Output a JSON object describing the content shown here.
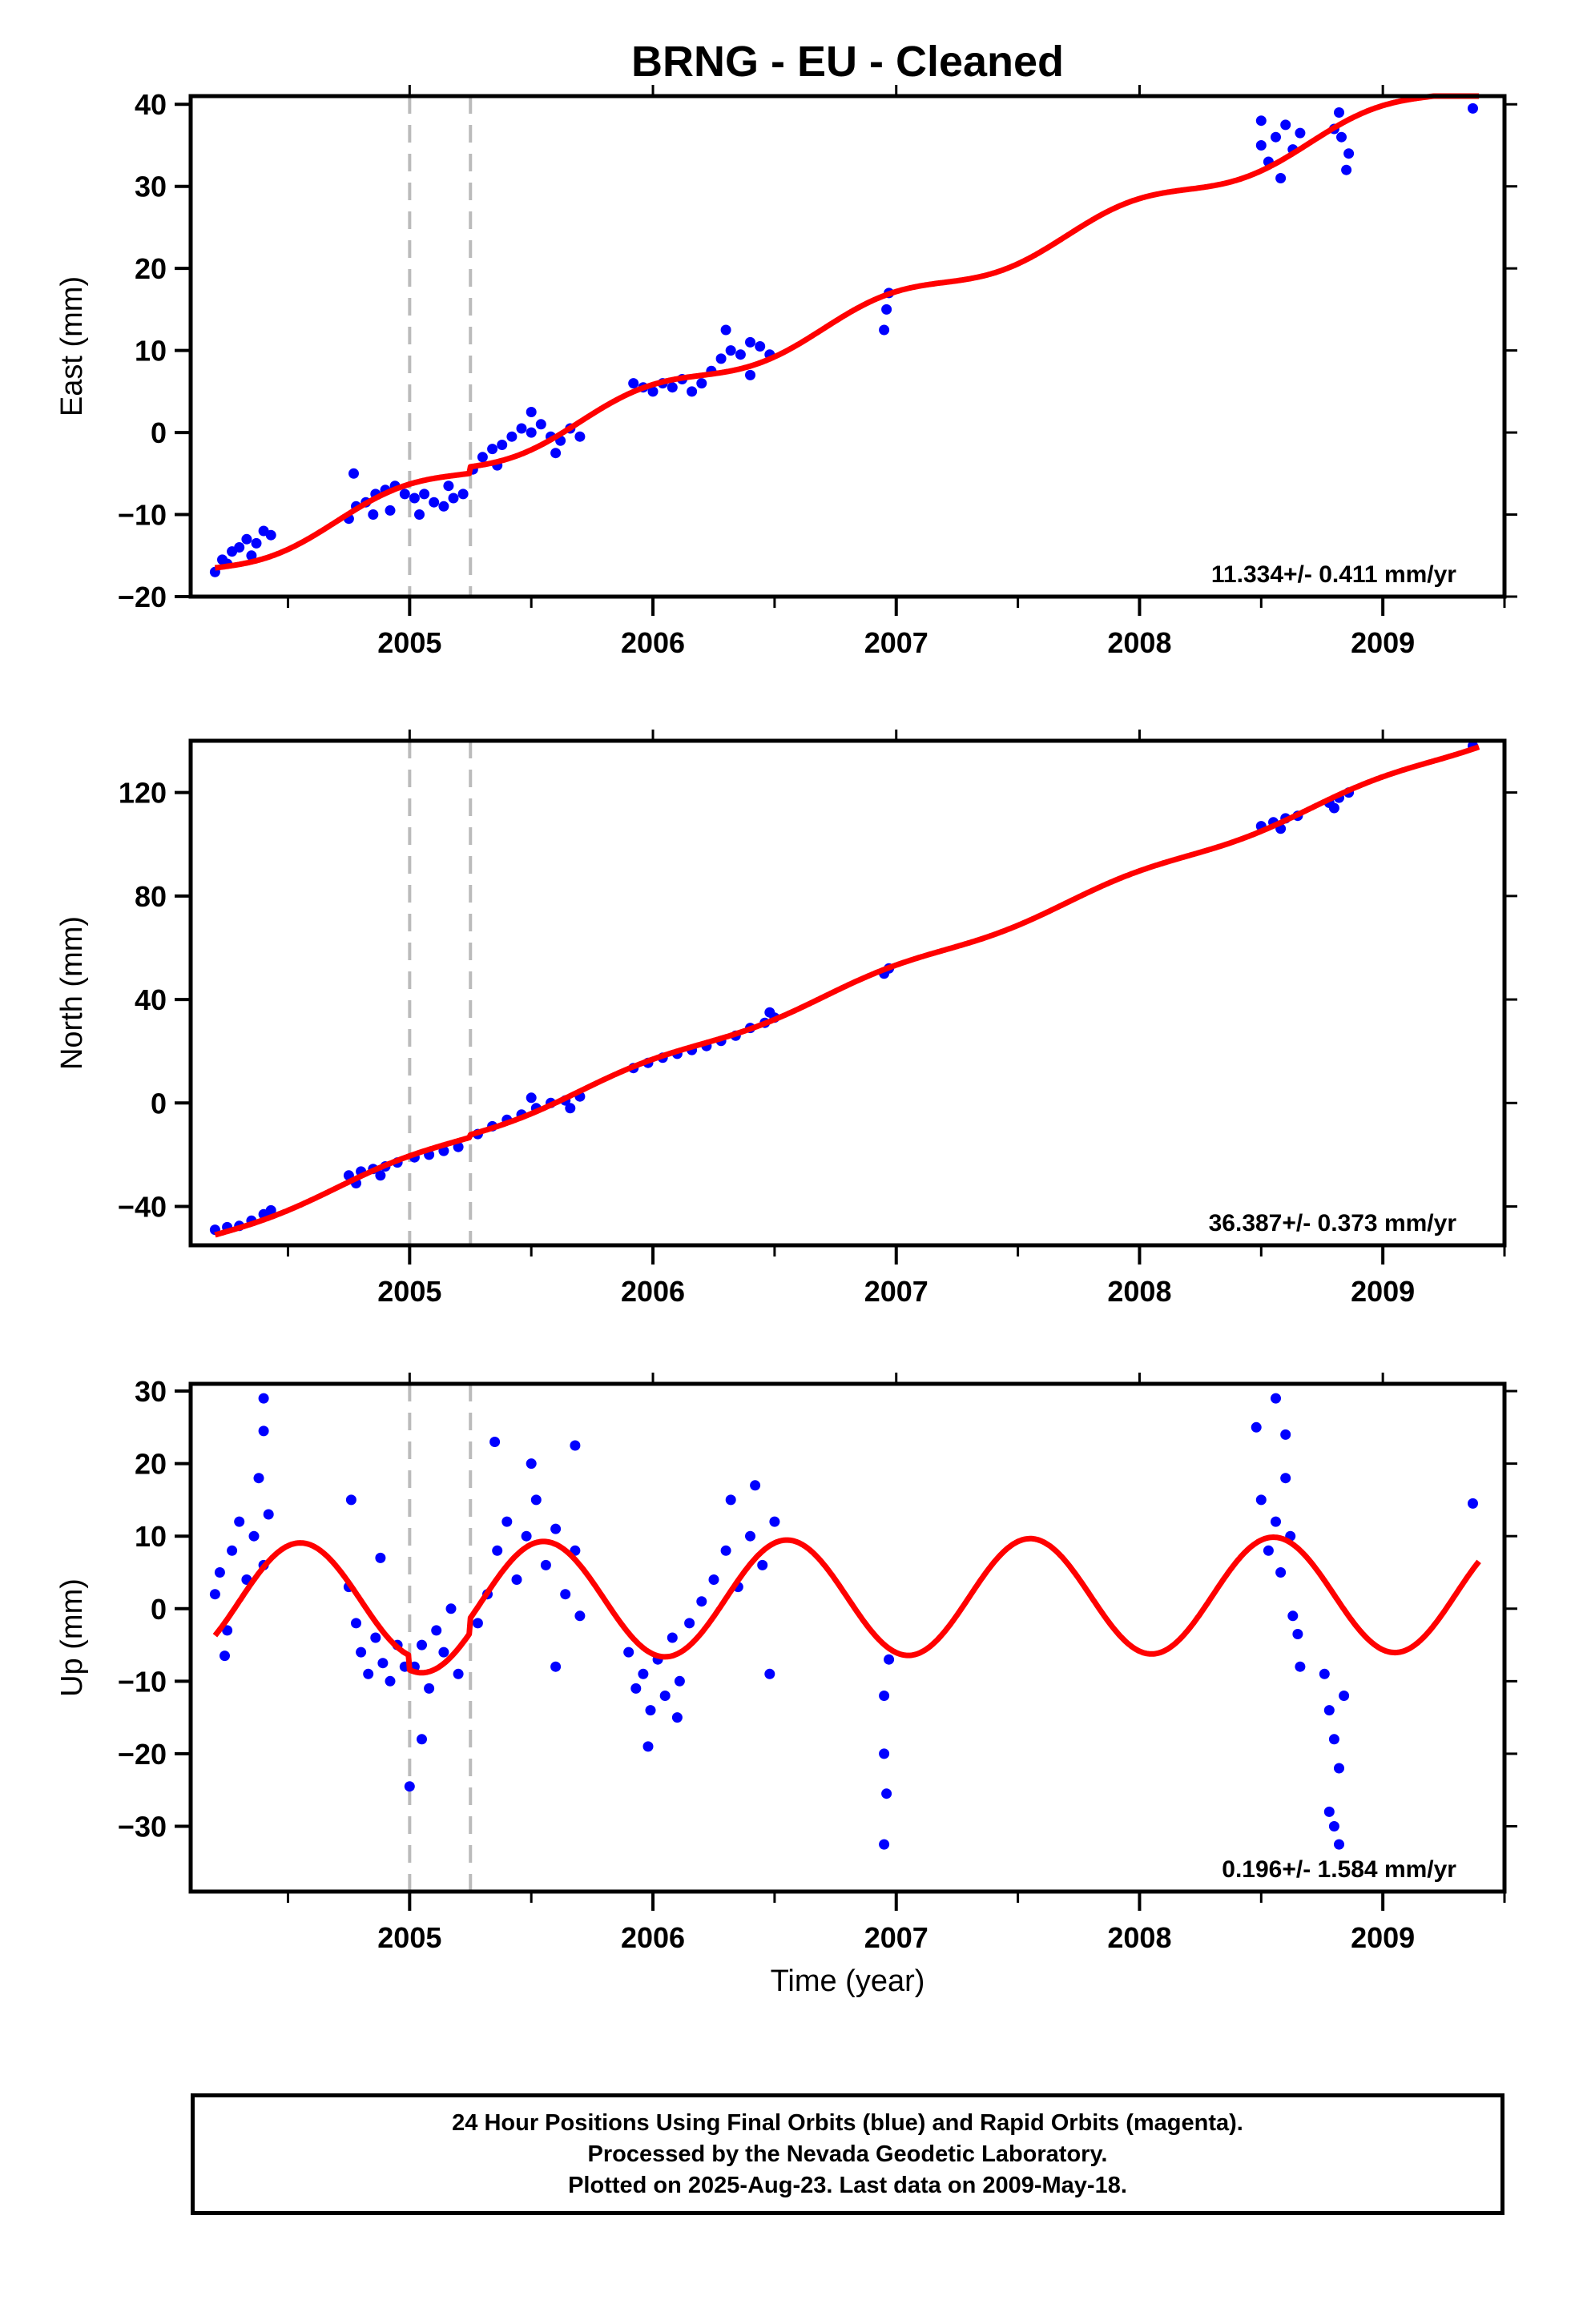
{
  "chart_data": [
    {
      "type": "scatter",
      "title": "BRNG  - EU - Cleaned",
      "ylabel": "East (mm)",
      "xlabel": "",
      "xlim": [
        2004.1,
        2009.5
      ],
      "ylim": [
        -20,
        41
      ],
      "x_ticks": [
        2005,
        2006,
        2007,
        2008,
        2009
      ],
      "y_ticks": [
        -20,
        -10,
        0,
        10,
        20,
        30,
        40
      ],
      "rate_label": "11.334+/- 0.411 mm/yr",
      "rate": 11.334,
      "offsets": [
        2005.0,
        2005.25
      ],
      "series": [
        {
          "name": "Final Orbits",
          "values": [
            [
              2004.2,
              -17.0
            ],
            [
              2004.23,
              -15.5
            ],
            [
              2004.27,
              -14.5
            ],
            [
              2004.3,
              -14.0
            ],
            [
              2004.33,
              -13.0
            ],
            [
              2004.37,
              -13.5
            ],
            [
              2004.4,
              -12.0
            ],
            [
              2004.43,
              -12.5
            ],
            [
              2004.25,
              -16.0
            ],
            [
              2004.35,
              -15.0
            ],
            [
              2004.75,
              -10.5
            ],
            [
              2004.78,
              -9.0
            ],
            [
              2004.82,
              -8.5
            ],
            [
              2004.86,
              -7.5
            ],
            [
              2004.9,
              -7.0
            ],
            [
              2004.94,
              -6.5
            ],
            [
              2004.98,
              -7.5
            ],
            [
              2004.77,
              -5.0
            ],
            [
              2004.85,
              -10.0
            ],
            [
              2004.92,
              -9.5
            ],
            [
              2005.02,
              -8.0
            ],
            [
              2005.06,
              -7.5
            ],
            [
              2005.1,
              -8.5
            ],
            [
              2005.14,
              -9.0
            ],
            [
              2005.18,
              -8.0
            ],
            [
              2005.22,
              -7.5
            ],
            [
              2005.04,
              -10.0
            ],
            [
              2005.16,
              -6.5
            ],
            [
              2005.26,
              -4.5
            ],
            [
              2005.3,
              -3.0
            ],
            [
              2005.34,
              -2.0
            ],
            [
              2005.38,
              -1.5
            ],
            [
              2005.42,
              -0.5
            ],
            [
              2005.46,
              0.5
            ],
            [
              2005.5,
              0.0
            ],
            [
              2005.54,
              1.0
            ],
            [
              2005.58,
              -0.5
            ],
            [
              2005.62,
              -1.0
            ],
            [
              2005.66,
              0.5
            ],
            [
              2005.7,
              -0.5
            ],
            [
              2005.36,
              -4.0
            ],
            [
              2005.5,
              2.5
            ],
            [
              2005.6,
              -2.5
            ],
            [
              2005.92,
              6.0
            ],
            [
              2005.96,
              5.5
            ],
            [
              2006.0,
              5.0
            ],
            [
              2006.04,
              6.0
            ],
            [
              2006.08,
              5.5
            ],
            [
              2006.12,
              6.5
            ],
            [
              2006.16,
              5.0
            ],
            [
              2006.2,
              6.0
            ],
            [
              2006.24,
              7.5
            ],
            [
              2006.28,
              9.0
            ],
            [
              2006.32,
              10.0
            ],
            [
              2006.36,
              9.5
            ],
            [
              2006.4,
              11.0
            ],
            [
              2006.44,
              10.5
            ],
            [
              2006.48,
              9.5
            ],
            [
              2006.3,
              12.5
            ],
            [
              2006.4,
              7.0
            ],
            [
              2006.95,
              12.5
            ],
            [
              2006.96,
              15.0
            ],
            [
              2006.97,
              17.0
            ],
            [
              2008.5,
              35.0
            ],
            [
              2008.53,
              33.0
            ],
            [
              2008.56,
              36.0
            ],
            [
              2008.6,
              37.5
            ],
            [
              2008.63,
              34.5
            ],
            [
              2008.66,
              36.5
            ],
            [
              2008.5,
              38.0
            ],
            [
              2008.58,
              31.0
            ],
            [
              2008.8,
              37.0
            ],
            [
              2008.83,
              36.0
            ],
            [
              2008.86,
              34.0
            ],
            [
              2008.82,
              39.0
            ],
            [
              2008.85,
              32.0
            ],
            [
              2009.37,
              39.5
            ]
          ]
        },
        {
          "name": "Model",
          "curve": "annual",
          "intercept": -16.5,
          "x0": 2004.2,
          "amplitude": 1.2,
          "phase": 0.5,
          "steps": [
            [
              2005.25,
              0.8
            ]
          ]
        }
      ]
    },
    {
      "type": "scatter",
      "title": "",
      "ylabel": "North (mm)",
      "xlabel": "",
      "xlim": [
        2004.1,
        2009.5
      ],
      "ylim": [
        -55,
        140
      ],
      "x_ticks": [
        2005,
        2006,
        2007,
        2008,
        2009
      ],
      "y_ticks": [
        -40,
        0,
        40,
        80,
        120
      ],
      "rate_label": "36.387+/- 0.373 mm/yr",
      "rate": 36.387,
      "offsets": [
        2005.0,
        2005.25
      ],
      "series": [
        {
          "name": "Final Orbits",
          "values": [
            [
              2004.2,
              -49.0
            ],
            [
              2004.25,
              -48.0
            ],
            [
              2004.3,
              -47.5
            ],
            [
              2004.35,
              -45.5
            ],
            [
              2004.4,
              -43.0
            ],
            [
              2004.43,
              -41.5
            ],
            [
              2004.75,
              -28.0
            ],
            [
              2004.8,
              -26.5
            ],
            [
              2004.85,
              -25.5
            ],
            [
              2004.9,
              -24.5
            ],
            [
              2004.95,
              -23.0
            ],
            [
              2004.78,
              -31.0
            ],
            [
              2004.88,
              -28.0
            ],
            [
              2005.02,
              -21.0
            ],
            [
              2005.08,
              -20.0
            ],
            [
              2005.14,
              -18.5
            ],
            [
              2005.2,
              -17.0
            ],
            [
              2005.28,
              -12.0
            ],
            [
              2005.34,
              -9.0
            ],
            [
              2005.4,
              -6.5
            ],
            [
              2005.46,
              -4.5
            ],
            [
              2005.52,
              -2.0
            ],
            [
              2005.58,
              0.0
            ],
            [
              2005.64,
              1.0
            ],
            [
              2005.7,
              2.5
            ],
            [
              2005.5,
              2.0
            ],
            [
              2005.66,
              -2.0
            ],
            [
              2005.92,
              13.5
            ],
            [
              2005.98,
              15.5
            ],
            [
              2006.04,
              17.5
            ],
            [
              2006.1,
              19.0
            ],
            [
              2006.16,
              20.5
            ],
            [
              2006.22,
              22.0
            ],
            [
              2006.28,
              24.0
            ],
            [
              2006.34,
              26.0
            ],
            [
              2006.4,
              29.0
            ],
            [
              2006.46,
              31.0
            ],
            [
              2006.5,
              33.0
            ],
            [
              2006.48,
              35.0
            ],
            [
              2006.95,
              50.0
            ],
            [
              2006.97,
              52.0
            ],
            [
              2008.5,
              107.0
            ],
            [
              2008.55,
              108.5
            ],
            [
              2008.6,
              110.0
            ],
            [
              2008.65,
              111.0
            ],
            [
              2008.58,
              106.0
            ],
            [
              2008.78,
              116.0
            ],
            [
              2008.82,
              118.0
            ],
            [
              2008.86,
              120.0
            ],
            [
              2008.8,
              114.0
            ],
            [
              2009.37,
              138.0
            ]
          ]
        },
        {
          "name": "Model",
          "curve": "annual",
          "intercept": -51.0,
          "x0": 2004.2,
          "amplitude": 1.5,
          "phase": 0.5,
          "steps": [
            [
              2005.25,
              1.0
            ]
          ]
        }
      ]
    },
    {
      "type": "scatter",
      "title": "",
      "ylabel": "Up (mm)",
      "xlabel": "Time (year)",
      "xlim": [
        2004.1,
        2009.5
      ],
      "ylim": [
        -39,
        31
      ],
      "x_ticks": [
        2005,
        2006,
        2007,
        2008,
        2009
      ],
      "y_ticks": [
        -30,
        -20,
        -10,
        0,
        10,
        20,
        30
      ],
      "rate_label": "0.196+/- 1.584 mm/yr",
      "rate": 0.196,
      "offsets": [
        2005.0,
        2005.25
      ],
      "series": [
        {
          "name": "Final Orbits",
          "values": [
            [
              2004.2,
              2.0
            ],
            [
              2004.22,
              5.0
            ],
            [
              2004.25,
              -3.0
            ],
            [
              2004.27,
              8.0
            ],
            [
              2004.3,
              12.0
            ],
            [
              2004.33,
              4.0
            ],
            [
              2004.36,
              10.0
            ],
            [
              2004.38,
              18.0
            ],
            [
              2004.4,
              6.0
            ],
            [
              2004.4,
              29.0
            ],
            [
              2004.4,
              24.5
            ],
            [
              2004.42,
              13.0
            ],
            [
              2004.24,
              -6.5
            ],
            [
              2004.75,
              3.0
            ],
            [
              2004.78,
              -2.0
            ],
            [
              2004.8,
              -6.0
            ],
            [
              2004.83,
              -9.0
            ],
            [
              2004.86,
              -4.0
            ],
            [
              2004.89,
              -7.5
            ],
            [
              2004.92,
              -10.0
            ],
            [
              2004.95,
              -5.0
            ],
            [
              2004.98,
              -8.0
            ],
            [
              2004.76,
              15.0
            ],
            [
              2004.88,
              7.0
            ],
            [
              2005.02,
              -8.0
            ],
            [
              2005.05,
              -5.0
            ],
            [
              2005.08,
              -11.0
            ],
            [
              2005.11,
              -3.0
            ],
            [
              2005.14,
              -6.0
            ],
            [
              2005.17,
              0.0
            ],
            [
              2005.2,
              -9.0
            ],
            [
              2005.05,
              -18.0
            ],
            [
              2005.0,
              -24.5
            ],
            [
              2005.28,
              -2.0
            ],
            [
              2005.32,
              2.0
            ],
            [
              2005.36,
              8.0
            ],
            [
              2005.4,
              12.0
            ],
            [
              2005.44,
              4.0
            ],
            [
              2005.48,
              10.0
            ],
            [
              2005.52,
              15.0
            ],
            [
              2005.56,
              6.0
            ],
            [
              2005.6,
              11.0
            ],
            [
              2005.64,
              2.0
            ],
            [
              2005.68,
              8.0
            ],
            [
              2005.7,
              -1.0
            ],
            [
              2005.35,
              23.0
            ],
            [
              2005.5,
              20.0
            ],
            [
              2005.68,
              22.5
            ],
            [
              2005.6,
              -8.0
            ],
            [
              2005.9,
              -6.0
            ],
            [
              2005.93,
              -11.0
            ],
            [
              2005.96,
              -9.0
            ],
            [
              2005.99,
              -14.0
            ],
            [
              2006.02,
              -7.0
            ],
            [
              2006.05,
              -12.0
            ],
            [
              2006.08,
              -4.0
            ],
            [
              2006.11,
              -10.0
            ],
            [
              2005.98,
              -19.0
            ],
            [
              2006.1,
              -15.0
            ],
            [
              2006.15,
              -2.0
            ],
            [
              2006.2,
              1.0
            ],
            [
              2006.25,
              4.0
            ],
            [
              2006.3,
              8.0
            ],
            [
              2006.35,
              3.0
            ],
            [
              2006.4,
              10.0
            ],
            [
              2006.45,
              6.0
            ],
            [
              2006.5,
              12.0
            ],
            [
              2006.32,
              15.0
            ],
            [
              2006.42,
              17.0
            ],
            [
              2006.48,
              -9.0
            ],
            [
              2006.95,
              -12.0
            ],
            [
              2006.95,
              -20.0
            ],
            [
              2006.96,
              -25.5
            ],
            [
              2006.95,
              -32.5
            ],
            [
              2006.97,
              -7.0
            ],
            [
              2008.48,
              25.0
            ],
            [
              2008.5,
              15.0
            ],
            [
              2008.53,
              8.0
            ],
            [
              2008.56,
              12.0
            ],
            [
              2008.58,
              5.0
            ],
            [
              2008.6,
              18.0
            ],
            [
              2008.62,
              10.0
            ],
            [
              2008.56,
              29.0
            ],
            [
              2008.6,
              24.0
            ],
            [
              2008.63,
              -1.0
            ],
            [
              2008.65,
              -3.5
            ],
            [
              2008.66,
              -8.0
            ],
            [
              2008.76,
              -9.0
            ],
            [
              2008.78,
              -14.0
            ],
            [
              2008.8,
              -18.0
            ],
            [
              2008.82,
              -22.0
            ],
            [
              2008.78,
              -28.0
            ],
            [
              2008.8,
              -30.0
            ],
            [
              2008.82,
              -32.5
            ],
            [
              2008.84,
              -12.0
            ],
            [
              2009.37,
              14.5
            ]
          ]
        },
        {
          "name": "Model",
          "curve": "annual",
          "intercept": 1.0,
          "x0": 2004.2,
          "amplitude": 8.0,
          "phase": 0.1,
          "steps": [
            [
              2005.0,
              -2.0
            ],
            [
              2005.25,
              2.0
            ]
          ]
        }
      ]
    }
  ],
  "colors": {
    "data": "#0000ff",
    "model": "#ff0000",
    "offset_line": "#bbbbbb",
    "axis": "#000000"
  },
  "footer": {
    "line1": "24 Hour Positions Using Final Orbits (blue) and Rapid Orbits (magenta).",
    "line2": "Processed by the Nevada Geodetic Laboratory.",
    "line3": "Plotted on 2025-Aug-23. Last data on 2009-May-18."
  }
}
